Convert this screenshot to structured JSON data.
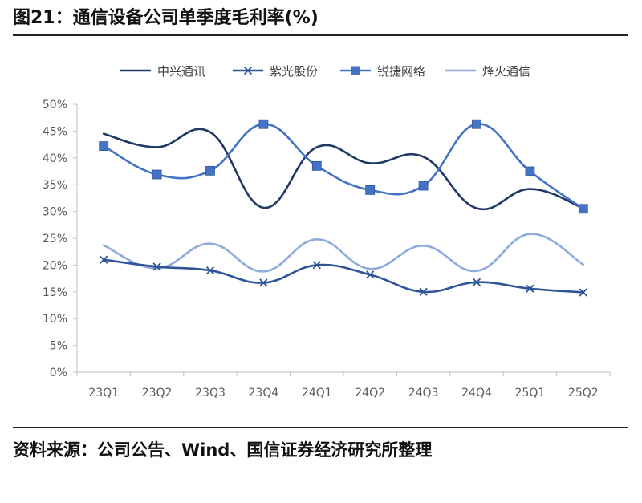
{
  "header": {
    "title": "图21：通信设备公司单季度毛利率(%)"
  },
  "footer": {
    "source": "资料来源：公司公告、Wind、国信证券经济研究所整理"
  },
  "chart_data": {
    "type": "line",
    "title": "",
    "xlabel": "",
    "ylabel": "",
    "categories": [
      "23Q1",
      "23Q2",
      "23Q3",
      "23Q4",
      "24Q1",
      "24Q2",
      "24Q3",
      "24Q4",
      "25Q1",
      "25Q2"
    ],
    "ylim": [
      0,
      50
    ],
    "y_ticks": [
      0,
      5,
      10,
      15,
      20,
      25,
      30,
      35,
      40,
      45,
      50
    ],
    "y_tick_labels": [
      "0%",
      "5%",
      "10%",
      "15%",
      "20%",
      "25%",
      "30%",
      "35%",
      "40%",
      "45%",
      "50%"
    ],
    "grid": false,
    "smooth": true,
    "legend_position": "top",
    "series": [
      {
        "name": "中兴通讯",
        "color": "#1f3864",
        "marker": "none",
        "values": [
          44.5,
          42.0,
          44.8,
          30.7,
          42.0,
          39.0,
          40.2,
          30.6,
          34.2,
          30.6
        ]
      },
      {
        "name": "紫光股份",
        "color": "#2e5597",
        "marker": "x",
        "values": [
          21.0,
          19.7,
          19.0,
          16.7,
          20.0,
          18.2,
          15.0,
          16.8,
          15.6,
          14.9
        ]
      },
      {
        "name": "锐捷网络",
        "color": "#4472c4",
        "marker": "square",
        "values": [
          42.2,
          36.9,
          37.6,
          46.3,
          38.5,
          34.0,
          34.8,
          46.3,
          37.5,
          30.5
        ]
      },
      {
        "name": "烽火通信",
        "color": "#8faadc",
        "marker": "none",
        "values": [
          23.7,
          19.4,
          24.0,
          18.8,
          24.8,
          19.3,
          23.6,
          18.9,
          25.8,
          20.1
        ]
      }
    ]
  }
}
